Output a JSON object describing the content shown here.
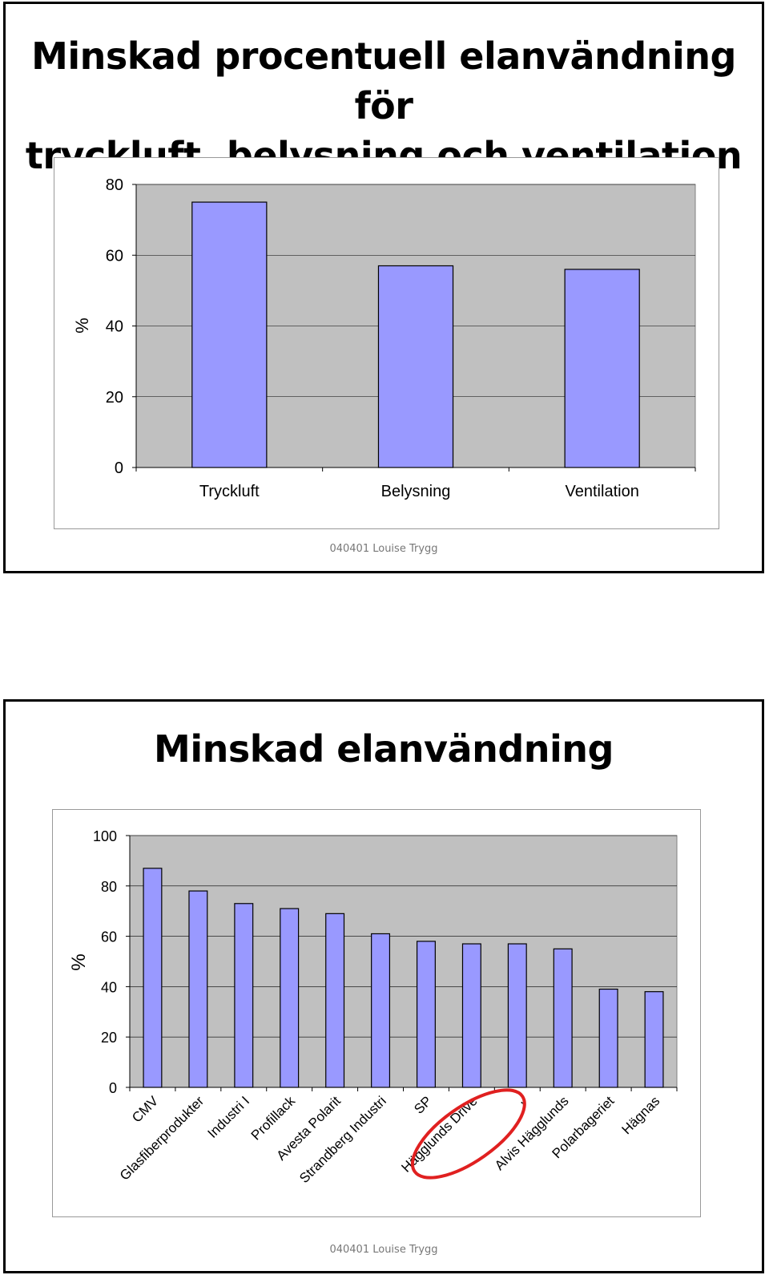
{
  "slides": [
    {
      "title_line1": "Minskad procentuell elanvändning för",
      "title_line2": "tryckluft, belysning och ventilation",
      "footer": "040401 Louise Trygg"
    },
    {
      "title": "Minskad elanvändning",
      "footer": "040401 Louise Trygg"
    }
  ],
  "colors": {
    "bar_fill": "#9999ff",
    "plot_bg": "#c0c0c0",
    "gridline": "#000000",
    "highlight_ellipse": "#e02020"
  },
  "chart_data": [
    {
      "type": "bar",
      "title": "",
      "xlabel": "",
      "ylabel": "%",
      "ylim": [
        0,
        80
      ],
      "yticks": [
        0,
        20,
        40,
        60,
        80
      ],
      "categories": [
        "Tryckluft",
        "Belysning",
        "Ventilation"
      ],
      "values": [
        75,
        57,
        56
      ],
      "grid": true,
      "legend": "none"
    },
    {
      "type": "bar",
      "title": "",
      "xlabel": "",
      "ylabel": "%",
      "ylim": [
        0,
        100
      ],
      "yticks": [
        0,
        20,
        40,
        60,
        80,
        100
      ],
      "categories": [
        "CMV",
        "Glasfiberprodukter",
        "Industri I",
        "Profillack",
        "Avesta Polarit",
        "Strandberg Industri",
        "SP",
        "Hägglunds Drive",
        ",",
        "Alvis Hägglunds",
        "Polarbageriet",
        "Hägnas"
      ],
      "values": [
        87,
        78,
        73,
        71,
        69,
        61,
        58,
        57,
        57,
        55,
        39,
        38
      ],
      "grid": true,
      "legend": "none",
      "annotation": "red ellipse around Hägglunds Drive"
    }
  ]
}
